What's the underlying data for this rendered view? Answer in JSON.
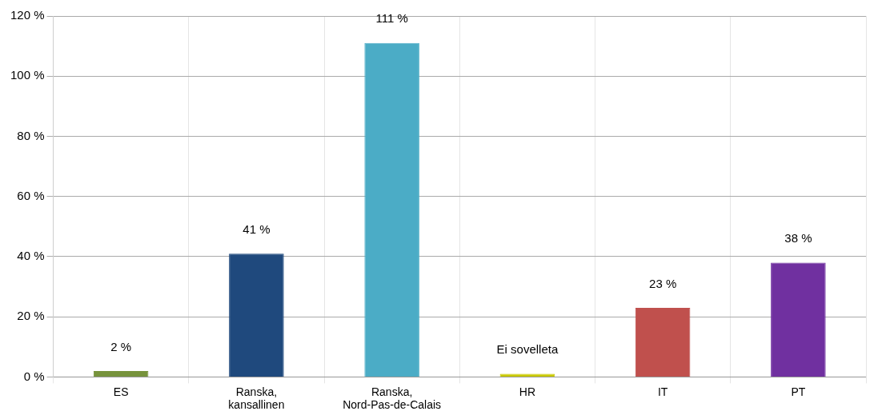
{
  "chart_data": {
    "type": "bar",
    "categories": [
      "ES",
      "Ranska, kansallinen",
      "Ranska, Nord-Pas-de-Calais",
      "HR",
      "IT",
      "PT"
    ],
    "values": [
      2,
      41,
      111,
      0,
      23,
      38
    ],
    "colors": [
      "#77933c",
      "#1f497d",
      "#4bacc6",
      "#c9c900",
      "#c0504d",
      "#7030a0"
    ],
    "value_labels": [
      "2 %",
      "41 %",
      "111 %",
      "Ei sovelleta",
      "23 %",
      "38 %"
    ],
    "ylim": [
      0,
      120
    ],
    "yticks": [
      {
        "value": 0,
        "label": "0 %"
      },
      {
        "value": 20,
        "label": "20 %"
      },
      {
        "value": 40,
        "label": "40 %"
      },
      {
        "value": 60,
        "label": "60 %"
      },
      {
        "value": 80,
        "label": "80 %"
      },
      {
        "value": 100,
        "label": "100 %"
      },
      {
        "value": 120,
        "label": "120 %"
      }
    ],
    "grid": true,
    "legend": false
  }
}
